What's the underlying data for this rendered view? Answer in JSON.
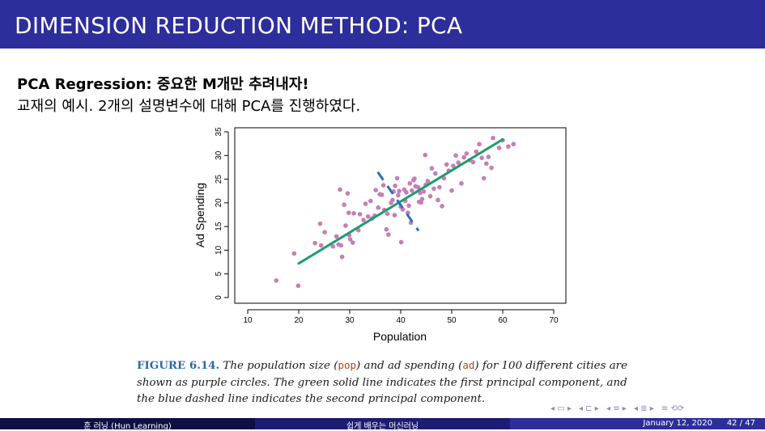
{
  "slide": {
    "title": "DIMENSION REDUCTION METHOD: PCA",
    "heading": "PCA Regression: 중요한 M개만 추려내자!",
    "subline": "교재의 예시. 2개의 설명변수에 대해 PCA를 진행하였다."
  },
  "caption": {
    "label": "FIGURE 6.14.",
    "part1": " The population size (",
    "code1": "pop",
    "part2": ") and ad spending (",
    "code2": "ad",
    "part3": ") for 100 different cities are shown as purple circles. The green solid line indicates the first principal component, and the blue dashed line indicates the second principal component."
  },
  "footer": {
    "author": "훈 러닝 (Hun Learning)",
    "course": "쉽게 배우는 머신러닝",
    "date": "January 12, 2020",
    "page": "42 / 47"
  },
  "nav_icons": [
    "nav-frame-icon",
    "nav-subsection-icon",
    "nav-section-icon",
    "nav-align-icon",
    "nav-search-icon"
  ],
  "chart_data": {
    "type": "scatter",
    "xlabel": "Population",
    "ylabel": "Ad Spending",
    "xlim": [
      10,
      70
    ],
    "ylim": [
      0,
      35
    ],
    "xticks": [
      10,
      20,
      30,
      40,
      50,
      60,
      70
    ],
    "yticks": [
      0,
      5,
      10,
      15,
      20,
      25,
      30,
      35
    ],
    "colors": {
      "points": "#c77db8",
      "pc1": "#1a9e6b",
      "pc2": "#2c6fb8"
    },
    "points": [
      [
        15.6,
        3.6
      ],
      [
        19.9,
        2.5
      ],
      [
        19.1,
        9.3
      ],
      [
        23.2,
        11.5
      ],
      [
        24.4,
        11.0
      ],
      [
        24.2,
        15.6
      ],
      [
        25.1,
        13.8
      ],
      [
        26.7,
        10.8
      ],
      [
        27.4,
        12.9
      ],
      [
        27.8,
        11.2
      ],
      [
        28.3,
        11.0
      ],
      [
        28.5,
        8.6
      ],
      [
        29.2,
        15.2
      ],
      [
        29.9,
        13.2
      ],
      [
        30.1,
        12.3
      ],
      [
        30.6,
        11.6
      ],
      [
        28.1,
        22.8
      ],
      [
        29.6,
        22.0
      ],
      [
        28.9,
        19.6
      ],
      [
        29.8,
        17.9
      ],
      [
        30.8,
        17.8
      ],
      [
        31.7,
        14.2
      ],
      [
        32.0,
        17.6
      ],
      [
        32.7,
        16.4
      ],
      [
        33.1,
        19.8
      ],
      [
        33.6,
        17.1
      ],
      [
        34.1,
        20.4
      ],
      [
        34.4,
        16.7
      ],
      [
        34.9,
        17.3
      ],
      [
        35.1,
        22.7
      ],
      [
        35.6,
        19.0
      ],
      [
        35.9,
        21.8
      ],
      [
        36.3,
        21.7
      ],
      [
        36.6,
        23.7
      ],
      [
        36.8,
        18.5
      ],
      [
        37.2,
        14.4
      ],
      [
        37.4,
        17.7
      ],
      [
        37.6,
        13.3
      ],
      [
        38.1,
        20.0
      ],
      [
        38.4,
        20.6
      ],
      [
        38.6,
        22.4
      ],
      [
        38.9,
        23.6
      ],
      [
        39.3,
        25.2
      ],
      [
        39.5,
        21.6
      ],
      [
        39.7,
        22.5
      ],
      [
        40.0,
        19.2
      ],
      [
        40.1,
        11.7
      ],
      [
        40.4,
        18.6
      ],
      [
        40.7,
        22.8
      ],
      [
        40.9,
        20.4
      ],
      [
        41.1,
        22.2
      ],
      [
        41.4,
        17.9
      ],
      [
        41.6,
        19.4
      ],
      [
        41.8,
        24.1
      ],
      [
        42.0,
        15.8
      ],
      [
        42.2,
        22.6
      ],
      [
        42.5,
        24.8
      ],
      [
        42.7,
        25.1
      ],
      [
        42.9,
        23.5
      ],
      [
        43.4,
        23.3
      ],
      [
        43.8,
        22.1
      ],
      [
        44.0,
        20.1
      ],
      [
        44.2,
        20.8
      ],
      [
        44.5,
        22.4
      ],
      [
        44.9,
        23.8
      ],
      [
        45.3,
        24.6
      ],
      [
        45.8,
        21.4
      ],
      [
        46.1,
        27.3
      ],
      [
        46.5,
        23.0
      ],
      [
        46.8,
        26.2
      ],
      [
        47.3,
        20.6
      ],
      [
        47.6,
        23.3
      ],
      [
        48.1,
        19.3
      ],
      [
        48.5,
        25.2
      ],
      [
        49.0,
        28.1
      ],
      [
        49.4,
        26.8
      ],
      [
        50.0,
        22.6
      ],
      [
        50.3,
        27.8
      ],
      [
        50.8,
        30.0
      ],
      [
        51.3,
        28.5
      ],
      [
        51.9,
        24.1
      ],
      [
        52.4,
        29.6
      ],
      [
        52.9,
        30.4
      ],
      [
        53.5,
        29.0
      ],
      [
        54.2,
        28.6
      ],
      [
        54.8,
        30.8
      ],
      [
        55.4,
        32.4
      ],
      [
        55.9,
        29.5
      ],
      [
        56.3,
        25.2
      ],
      [
        56.8,
        28.3
      ],
      [
        57.2,
        29.7
      ],
      [
        57.8,
        27.4
      ],
      [
        58.1,
        33.7
      ],
      [
        59.3,
        31.6
      ],
      [
        60.0,
        33.2
      ],
      [
        61.1,
        31.9
      ],
      [
        62.1,
        32.4
      ],
      [
        44.8,
        30.1
      ],
      [
        43.6,
        20.2
      ],
      [
        38.8,
        17.4
      ]
    ],
    "pc1": [
      [
        20,
        7.2
      ],
      [
        60,
        33.4
      ]
    ],
    "pc2": [
      [
        35.5,
        26.5
      ],
      [
        43.5,
        14.1
      ]
    ]
  }
}
